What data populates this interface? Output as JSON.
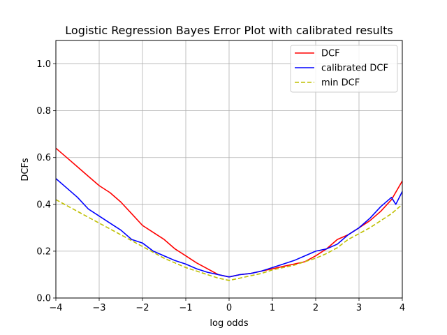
{
  "chart_data": {
    "type": "line",
    "title": "Logistic Regression Bayes Error Plot with calibrated results",
    "xlabel": "log odds",
    "ylabel": "DCFs",
    "xlim": [
      -4,
      4
    ],
    "ylim": [
      0,
      1.1
    ],
    "xticks": [
      -4,
      -3,
      -2,
      -1,
      0,
      1,
      2,
      3,
      4
    ],
    "yticks": [
      0.0,
      0.2,
      0.4,
      0.6,
      0.8,
      1.0
    ],
    "xtick_labels": [
      "−4",
      "−3",
      "−2",
      "−1",
      "0",
      "1",
      "2",
      "3",
      "4"
    ],
    "ytick_labels": [
      "0.0",
      "0.2",
      "0.4",
      "0.6",
      "0.8",
      "1.0"
    ],
    "grid": true,
    "legend": "top-right",
    "series": [
      {
        "name": "DCF",
        "color": "#ff0000",
        "dash": "solid",
        "x": [
          -4.0,
          -3.75,
          -3.5,
          -3.25,
          -3.0,
          -2.75,
          -2.5,
          -2.25,
          -2.0,
          -1.75,
          -1.5,
          -1.25,
          -1.0,
          -0.75,
          -0.5,
          -0.25,
          0.0,
          0.25,
          0.5,
          0.75,
          1.0,
          1.25,
          1.5,
          1.75,
          2.0,
          2.25,
          2.5,
          2.75,
          3.0,
          3.25,
          3.5,
          3.75,
          4.0
        ],
        "y": [
          0.64,
          0.6,
          0.56,
          0.52,
          0.48,
          0.45,
          0.41,
          0.36,
          0.31,
          0.28,
          0.25,
          0.21,
          0.18,
          0.15,
          0.125,
          0.1,
          0.09,
          0.1,
          0.105,
          0.115,
          0.125,
          0.135,
          0.145,
          0.155,
          0.18,
          0.21,
          0.25,
          0.27,
          0.3,
          0.33,
          0.37,
          0.42,
          0.5
        ]
      },
      {
        "name": "calibrated DCF",
        "color": "#0000ff",
        "dash": "solid",
        "x": [
          -4.0,
          -3.75,
          -3.5,
          -3.25,
          -3.0,
          -2.75,
          -2.5,
          -2.25,
          -2.0,
          -1.75,
          -1.5,
          -1.25,
          -1.0,
          -0.75,
          -0.5,
          -0.25,
          0.0,
          0.25,
          0.5,
          0.75,
          1.0,
          1.25,
          1.5,
          1.75,
          2.0,
          2.25,
          2.5,
          2.75,
          3.0,
          3.25,
          3.5,
          3.75,
          3.85,
          4.0
        ],
        "y": [
          0.51,
          0.47,
          0.43,
          0.38,
          0.35,
          0.32,
          0.29,
          0.25,
          0.235,
          0.2,
          0.18,
          0.16,
          0.145,
          0.125,
          0.11,
          0.1,
          0.09,
          0.1,
          0.105,
          0.115,
          0.13,
          0.145,
          0.16,
          0.18,
          0.2,
          0.21,
          0.23,
          0.27,
          0.3,
          0.34,
          0.39,
          0.43,
          0.4,
          0.455
        ]
      },
      {
        "name": "min DCF",
        "color": "#bfbf00",
        "dash": "dashed",
        "x": [
          -4.0,
          -3.75,
          -3.5,
          -3.25,
          -3.0,
          -2.75,
          -2.5,
          -2.25,
          -2.0,
          -1.75,
          -1.5,
          -1.25,
          -1.0,
          -0.75,
          -0.5,
          -0.25,
          0.0,
          0.25,
          0.5,
          0.75,
          1.0,
          1.25,
          1.5,
          1.75,
          2.0,
          2.25,
          2.5,
          2.75,
          3.0,
          3.25,
          3.5,
          3.75,
          4.0
        ],
        "y": [
          0.42,
          0.395,
          0.37,
          0.345,
          0.32,
          0.295,
          0.27,
          0.245,
          0.22,
          0.195,
          0.17,
          0.15,
          0.13,
          0.115,
          0.1,
          0.085,
          0.075,
          0.085,
          0.095,
          0.105,
          0.12,
          0.13,
          0.14,
          0.155,
          0.17,
          0.19,
          0.215,
          0.25,
          0.275,
          0.3,
          0.33,
          0.36,
          0.4
        ]
      }
    ]
  }
}
